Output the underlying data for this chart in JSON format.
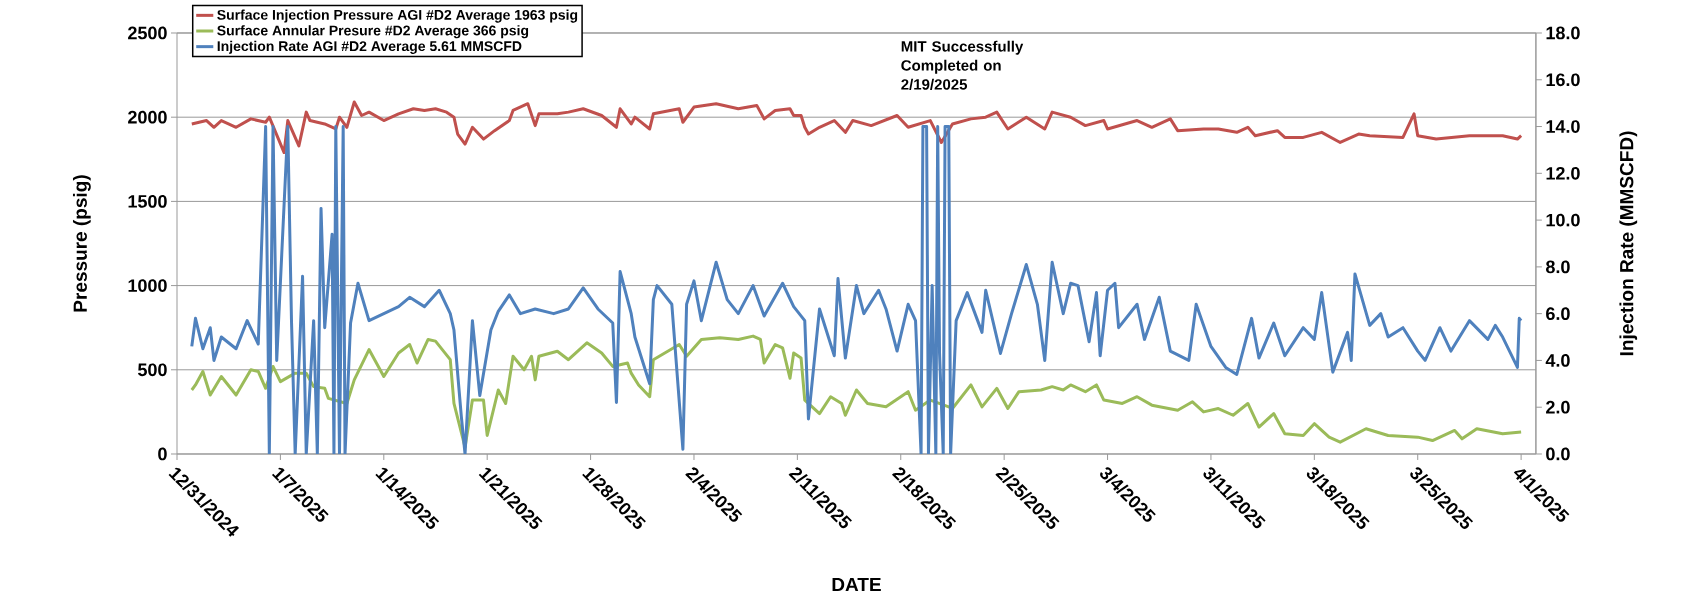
{
  "chart_data": {
    "type": "line",
    "xlabel": "DATE",
    "ylabel": "Pressure (psig)",
    "y2label": "Injection Rate (MMSCFD)",
    "annotations": [
      "MIT Successfully Completed on 2/19/2025"
    ],
    "xlim": [
      "2024-12-31",
      "2025-04-02"
    ],
    "xticks": [
      {
        "value": "2024-12-31",
        "label": "12/31/2024"
      },
      {
        "value": "2025-01-07",
        "label": "1/7/2025"
      },
      {
        "value": "2025-01-14",
        "label": "1/14/2025"
      },
      {
        "value": "2025-01-21",
        "label": "1/21/2025"
      },
      {
        "value": "2025-01-28",
        "label": "1/28/2025"
      },
      {
        "value": "2025-02-04",
        "label": "2/4/2025"
      },
      {
        "value": "2025-02-11",
        "label": "2/11/2025"
      },
      {
        "value": "2025-02-18",
        "label": "2/18/2025"
      },
      {
        "value": "2025-02-25",
        "label": "2/25/2025"
      },
      {
        "value": "2025-03-04",
        "label": "3/4/2025"
      },
      {
        "value": "2025-03-11",
        "label": "3/11/2025"
      },
      {
        "value": "2025-03-18",
        "label": "3/18/2025"
      },
      {
        "value": "2025-03-25",
        "label": "3/25/2025"
      },
      {
        "value": "2025-04-01",
        "label": "4/1/2025"
      }
    ],
    "ylim": [
      0,
      2500
    ],
    "yticks": [
      0,
      500,
      1000,
      1500,
      2000,
      2500
    ],
    "y2lim": [
      0,
      18
    ],
    "y2ticks": [
      {
        "value": 0,
        "label": "0.0"
      },
      {
        "value": 2,
        "label": "2.0"
      },
      {
        "value": 4,
        "label": "4.0"
      },
      {
        "value": 6,
        "label": "6.0"
      },
      {
        "value": 8,
        "label": "8.0"
      },
      {
        "value": 10,
        "label": "10.0"
      },
      {
        "value": 12,
        "label": "12.0"
      },
      {
        "value": 14,
        "label": "14.0"
      },
      {
        "value": 16,
        "label": "16.0"
      },
      {
        "value": 18,
        "label": "18.0"
      }
    ],
    "grid": "y",
    "legend": "top left",
    "marker": "none",
    "line_style": "solid",
    "series": [
      {
        "name": "Surface Injection Pressure AGI #D2 Average 1963 psig",
        "color": "#c0504d",
        "x": [
          "2025-01-01",
          "2025-01-02",
          "2025-01-02T12:00",
          "2025-01-03",
          "2025-01-04",
          "2025-01-05",
          "2025-01-06",
          "2025-01-06T06:00",
          "2025-01-07T06:00",
          "2025-01-07T12:00",
          "2025-01-08T06:00",
          "2025-01-08T18:00",
          "2025-01-09",
          "2025-01-10",
          "2025-01-10T18:00",
          "2025-01-11",
          "2025-01-11T12:00",
          "2025-01-12",
          "2025-01-12T12:00",
          "2025-01-13",
          "2025-01-14",
          "2025-01-15",
          "2025-01-16",
          "2025-01-16T18:00",
          "2025-01-17T12:00",
          "2025-01-18T06:00",
          "2025-01-18T18:00",
          "2025-01-19",
          "2025-01-19T12:00",
          "2025-01-20",
          "2025-01-20T18:00",
          "2025-01-21T12:00",
          "2025-01-22T12:00",
          "2025-01-22T18:00",
          "2025-01-23T18:00",
          "2025-01-24T06:00",
          "2025-01-24T12:00",
          "2025-01-25T18:00",
          "2025-01-26T12:00",
          "2025-01-27T12:00",
          "2025-01-28T18:00",
          "2025-01-29T18:00",
          "2025-01-30",
          "2025-01-30T18:00",
          "2025-01-31",
          "2025-02-01",
          "2025-02-01T06:00",
          "2025-02-03",
          "2025-02-03T06:00",
          "2025-02-04",
          "2025-02-05T12:00",
          "2025-02-07",
          "2025-02-08T06:00",
          "2025-02-08T18:00",
          "2025-02-09T12:00",
          "2025-02-10T12:00",
          "2025-02-10T18:00",
          "2025-02-11T06:00",
          "2025-02-11T12:00",
          "2025-02-11T18:00",
          "2025-02-12T12:00",
          "2025-02-13T12:00",
          "2025-02-14T06:00",
          "2025-02-14T18:00",
          "2025-02-16",
          "2025-02-17T18:00",
          "2025-02-18T12:00",
          "2025-02-20",
          "2025-02-20T18:00",
          "2025-02-21T12:00",
          "2025-02-22T18:00",
          "2025-02-23T18:00",
          "2025-02-24T12:00",
          "2025-02-25T06:00",
          "2025-02-26T12:00",
          "2025-02-27T18:00",
          "2025-02-28T06:00",
          "2025-03-01T12:00",
          "2025-03-02T12:00",
          "2025-03-03T18:00",
          "2025-03-04",
          "2025-03-06",
          "2025-03-07",
          "2025-03-08T06:00",
          "2025-03-08T18:00",
          "2025-03-10T12:00",
          "2025-03-11T12:00",
          "2025-03-12T18:00",
          "2025-03-13T12:00",
          "2025-03-14",
          "2025-03-15T12:00",
          "2025-03-16",
          "2025-03-17T06:00",
          "2025-03-18T12:00",
          "2025-03-19T18:00",
          "2025-03-21",
          "2025-03-21T18:00",
          "2025-03-24",
          "2025-03-24T18:00",
          "2025-03-25",
          "2025-03-26T06:00",
          "2025-03-28T12:00",
          "2025-03-30T18:00",
          "2025-03-31T18:00",
          "2025-04-01"
        ],
        "values": [
          1960,
          1980,
          1940,
          1980,
          1940,
          1990,
          1970,
          2000,
          1790,
          1980,
          1830,
          2030,
          1980,
          1960,
          1930,
          2000,
          1940,
          2090,
          2010,
          2030,
          1980,
          2020,
          2050,
          2040,
          2050,
          2030,
          2000,
          1900,
          1840,
          1940,
          1870,
          1920,
          1980,
          2040,
          2080,
          1950,
          2020,
          2020,
          2030,
          2050,
          2010,
          1940,
          2050,
          1960,
          2000,
          1930,
          2020,
          2050,
          1970,
          2060,
          2080,
          2050,
          2070,
          1990,
          2040,
          2050,
          2010,
          2010,
          1940,
          1900,
          1940,
          1980,
          1910,
          1980,
          1950,
          2010,
          1940,
          1980,
          1850,
          1960,
          1990,
          2000,
          2030,
          1930,
          2000,
          1930,
          2030,
          2000,
          1950,
          1980,
          1930,
          1980,
          1940,
          1990,
          1920,
          1930,
          1930,
          1910,
          1940,
          1890,
          1920,
          1880,
          1880,
          1910,
          1850,
          1900,
          1890,
          1880,
          2020,
          1890,
          1870,
          1890,
          1890,
          1870,
          1890
        ]
      },
      {
        "name": "Surface Annular Presure #D2 Average 366 psig",
        "color": "#9bbb59",
        "x": [
          "2025-01-01",
          "2025-01-01T06:00",
          "2025-01-01T18:00",
          "2025-01-02T06:00",
          "2025-01-03",
          "2025-01-04",
          "2025-01-05",
          "2025-01-05T12:00",
          "2025-01-06",
          "2025-01-06T12:00",
          "2025-01-07",
          "2025-01-08",
          "2025-01-08T18:00",
          "2025-01-09T06:00",
          "2025-01-10",
          "2025-01-10T06:00",
          "2025-01-11T12:00",
          "2025-01-12",
          "2025-01-13",
          "2025-01-14",
          "2025-01-15",
          "2025-01-15T18:00",
          "2025-01-16T06:00",
          "2025-01-17",
          "2025-01-17T12:00",
          "2025-01-18T12:00",
          "2025-01-18T18:00",
          "2025-01-19T12:00",
          "2025-01-20",
          "2025-01-20T18:00",
          "2025-01-21",
          "2025-01-21T18:00",
          "2025-01-22T06:00",
          "2025-01-22T18:00",
          "2025-01-23T12:00",
          "2025-01-24",
          "2025-01-24T06:00",
          "2025-01-24T12:00",
          "2025-01-25T18:00",
          "2025-01-26T12:00",
          "2025-01-27T18:00",
          "2025-01-28T18:00",
          "2025-01-29T12:00",
          "2025-01-30T12:00",
          "2025-01-30T18:00",
          "2025-01-31T06:00",
          "2025-02-01",
          "2025-02-01T06:00",
          "2025-02-03",
          "2025-02-03T12:00",
          "2025-02-04T12:00",
          "2025-02-05T18:00",
          "2025-02-07",
          "2025-02-08",
          "2025-02-08T12:00",
          "2025-02-08T18:00",
          "2025-02-09T12:00",
          "2025-02-10",
          "2025-02-10T12:00",
          "2025-02-10T18:00",
          "2025-02-11T06:00",
          "2025-02-11T12:00",
          "2025-02-12T12:00",
          "2025-02-13T06:00",
          "2025-02-14",
          "2025-02-14T06:00",
          "2025-02-15",
          "2025-02-15T18:00",
          "2025-02-17",
          "2025-02-18T12:00",
          "2025-02-19",
          "2025-02-20",
          "2025-02-21T06:00",
          "2025-02-21T12:00",
          "2025-02-22T18:00",
          "2025-02-23T12:00",
          "2025-02-24T12:00",
          "2025-02-25T06:00",
          "2025-02-26",
          "2025-02-27T12:00",
          "2025-02-28T06:00",
          "2025-03-01",
          "2025-03-01T12:00",
          "2025-03-02T12:00",
          "2025-03-03T06:00",
          "2025-03-03T18:00",
          "2025-03-05",
          "2025-03-06",
          "2025-03-07",
          "2025-03-08T18:00",
          "2025-03-09T18:00",
          "2025-03-10T12:00",
          "2025-03-11T12:00",
          "2025-03-12T12:00",
          "2025-03-13T12:00",
          "2025-03-14T06:00",
          "2025-03-15T06:00",
          "2025-03-16",
          "2025-03-17T06:00",
          "2025-03-18",
          "2025-03-19",
          "2025-03-19T18:00",
          "2025-03-21T12:00",
          "2025-03-23",
          "2025-03-25",
          "2025-03-26",
          "2025-03-27T12:00",
          "2025-03-28",
          "2025-03-29",
          "2025-03-30T18:00",
          "2025-04-01"
        ],
        "values": [
          380,
          410,
          490,
          350,
          460,
          350,
          500,
          490,
          390,
          520,
          430,
          480,
          480,
          400,
          390,
          330,
          300,
          440,
          620,
          460,
          600,
          650,
          540,
          680,
          670,
          560,
          300,
          40,
          320,
          320,
          110,
          380,
          300,
          580,
          500,
          580,
          440,
          580,
          610,
          560,
          660,
          600,
          520,
          540,
          480,
          410,
          340,
          560,
          650,
          580,
          680,
          690,
          680,
          700,
          680,
          540,
          650,
          630,
          450,
          600,
          570,
          320,
          240,
          340,
          300,
          230,
          380,
          300,
          280,
          370,
          260,
          320,
          280,
          270,
          410,
          280,
          390,
          270,
          370,
          380,
          400,
          380,
          410,
          370,
          410,
          320,
          300,
          340,
          290,
          260,
          310,
          250,
          270,
          230,
          300,
          160,
          240,
          120,
          110,
          180,
          100,
          70,
          150,
          110,
          100,
          80,
          140,
          90,
          150,
          120,
          130
        ]
      },
      {
        "name": "Injection Rate AGI #D2 Average 5.61 MMSCFD",
        "color": "#4f81bd",
        "axis": "y2",
        "x": [
          "2025-01-01",
          "2025-01-01T06:00",
          "2025-01-01T18:00",
          "2025-01-02T06:00",
          "2025-01-02T12:00",
          "2025-01-03",
          "2025-01-04",
          "2025-01-04T18:00",
          "2025-01-05T12:00",
          "2025-01-06",
          "2025-01-06T06:00",
          "2025-01-06T12:00",
          "2025-01-06T18:00",
          "2025-01-07T12:00",
          "2025-01-07T18:00",
          "2025-01-08",
          "2025-01-08T12:00",
          "2025-01-08T18:00",
          "2025-01-09T06:00",
          "2025-01-09T12:00",
          "2025-01-09T18:00",
          "2025-01-10",
          "2025-01-10T12:00",
          "2025-01-10T15:00",
          "2025-01-10T18:00",
          "2025-01-11",
          "2025-01-11T06:00",
          "2025-01-11T09:00",
          "2025-01-11T18:00",
          "2025-01-12T06:00",
          "2025-01-13",
          "2025-01-14",
          "2025-01-15",
          "2025-01-15T18:00",
          "2025-01-16T18:00",
          "2025-01-17T18:00",
          "2025-01-18T12:00",
          "2025-01-18T18:00",
          "2025-01-19T06:00",
          "2025-01-19T12:00",
          "2025-01-20",
          "2025-01-20T12:00",
          "2025-01-21T06:00",
          "2025-01-21T18:00",
          "2025-01-22T12:00",
          "2025-01-23T06:00",
          "2025-01-24T06:00",
          "2025-01-25T12:00",
          "2025-01-26T12:00",
          "2025-01-27T12:00",
          "2025-01-28T12:00",
          "2025-01-29T12:00",
          "2025-01-29T18:00",
          "2025-01-30",
          "2025-01-30T18:00",
          "2025-01-31",
          "2025-02-01",
          "2025-02-01T06:00",
          "2025-02-01T12:00",
          "2025-02-02T12:00",
          "2025-02-03T06:00",
          "2025-02-03T12:00",
          "2025-02-04",
          "2025-02-04T12:00",
          "2025-02-05T12:00",
          "2025-02-06T06:00",
          "2025-02-07",
          "2025-02-08",
          "2025-02-08T18:00",
          "2025-02-10",
          "2025-02-10T18:00",
          "2025-02-11T12:00",
          "2025-02-11T18:00",
          "2025-02-12T12:00",
          "2025-02-13T12:00",
          "2025-02-13T18:00",
          "2025-02-14T06:00",
          "2025-02-15",
          "2025-02-15T12:00",
          "2025-02-16T12:00",
          "2025-02-17",
          "2025-02-17T18:00",
          "2025-02-18T12:00",
          "2025-02-19",
          "2025-02-19T09:00",
          "2025-02-19T12:00",
          "2025-02-19T18:00",
          "2025-02-19T21:00",
          "2025-02-20T03:00",
          "2025-02-20T09:00",
          "2025-02-20T12:00",
          "2025-02-20T15:00",
          "2025-02-20T21:00",
          "2025-02-21",
          "2025-02-21T06:00",
          "2025-02-21T09:00",
          "2025-02-21T18:00",
          "2025-02-22T12:00",
          "2025-02-23T12:00",
          "2025-02-23T18:00",
          "2025-02-24T18:00",
          "2025-02-25T12:00",
          "2025-02-26T12:00",
          "2025-02-27T06:00",
          "2025-02-27T18:00",
          "2025-02-28T06:00",
          "2025-03-01",
          "2025-03-01T12:00",
          "2025-03-02",
          "2025-03-02T18:00",
          "2025-03-03T06:00",
          "2025-03-03T12:00",
          "2025-03-04",
          "2025-03-04T12:00",
          "2025-03-04T18:00",
          "2025-03-06",
          "2025-03-06T12:00",
          "2025-03-07T12:00",
          "2025-03-08T06:00",
          "2025-03-09T12:00",
          "2025-03-10",
          "2025-03-11",
          "2025-03-12",
          "2025-03-12T18:00",
          "2025-03-13T18:00",
          "2025-03-14T06:00",
          "2025-03-15T06:00",
          "2025-03-16",
          "2025-03-17T06:00",
          "2025-03-18",
          "2025-03-18T12:00",
          "2025-03-19T06:00",
          "2025-03-20T06:00",
          "2025-03-20T12:00",
          "2025-03-20T18:00",
          "2025-03-21T18:00",
          "2025-03-22T12:00",
          "2025-03-23",
          "2025-03-24",
          "2025-03-25",
          "2025-03-25T12:00",
          "2025-03-26T12:00",
          "2025-03-27T06:00",
          "2025-03-28T12:00",
          "2025-03-29T18:00",
          "2025-03-30T06:00",
          "2025-03-30T18:00",
          "2025-03-31T18:00",
          "2025-03-31T21:00",
          "2025-04-01"
        ],
        "values": [
          4.6,
          5.8,
          4.5,
          5.4,
          4.0,
          5.0,
          4.5,
          5.7,
          4.7,
          14.0,
          0,
          14.0,
          4.0,
          14.0,
          5.7,
          0,
          7.6,
          0,
          5.7,
          0,
          10.5,
          5.4,
          9.4,
          0,
          14.0,
          0,
          14.0,
          0,
          5.6,
          7.3,
          5.7,
          6.0,
          6.3,
          6.7,
          6.3,
          7.0,
          6.0,
          5.3,
          1.6,
          0,
          5.7,
          2.5,
          5.3,
          6.1,
          6.8,
          6.0,
          6.2,
          6.0,
          6.2,
          7.1,
          6.2,
          5.6,
          2.2,
          7.8,
          6.0,
          5.0,
          3.0,
          6.6,
          7.2,
          6.4,
          0.2,
          6.4,
          7.4,
          5.7,
          8.2,
          6.6,
          6.0,
          7.2,
          5.9,
          7.3,
          6.3,
          5.7,
          1.5,
          6.2,
          4.2,
          7.5,
          4.1,
          7.2,
          6.0,
          7.0,
          6.2,
          4.4,
          6.4,
          5.7,
          0,
          14.0,
          14.0,
          0,
          7.2,
          0,
          14.0,
          4.3,
          0,
          14.0,
          14.0,
          0,
          5.7,
          6.9,
          5.2,
          7.0,
          4.3,
          6.0,
          8.1,
          6.4,
          4.0,
          8.2,
          6.0,
          7.3,
          7.2,
          4.8,
          6.9,
          4.2,
          7.0,
          7.3,
          5.4,
          6.4,
          4.9,
          6.7,
          4.4,
          4.0,
          6.4,
          4.6,
          3.7,
          3.4,
          5.8,
          4.1,
          5.6,
          4.2,
          5.4,
          4.9,
          6.9,
          3.5,
          5.2,
          4.0,
          7.7,
          5.5,
          6.0,
          5.0,
          5.4,
          4.4,
          4.0,
          5.4,
          4.4,
          5.7,
          4.9,
          5.5,
          5.0,
          3.7,
          5.8,
          5.7
        ]
      }
    ]
  }
}
